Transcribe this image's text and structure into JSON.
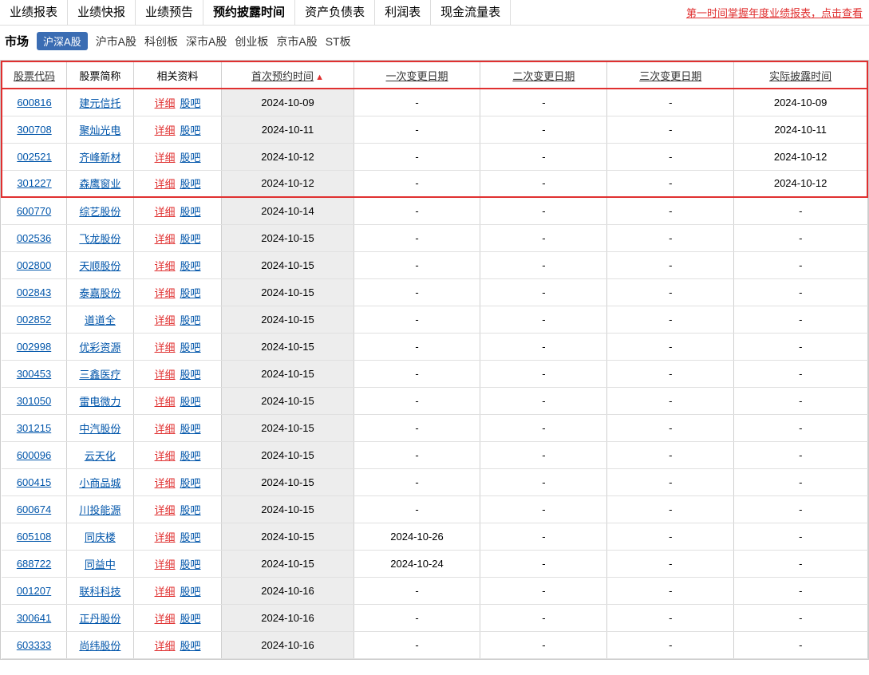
{
  "topTabs": [
    "业绩报表",
    "业绩快报",
    "业绩预告",
    "预约披露时间",
    "资产负债表",
    "利润表",
    "现金流量表"
  ],
  "topActiveIndex": 3,
  "promo": "第一时间掌握年度业绩报表，点击查看",
  "marketLabel": "市场",
  "marketActive": "沪深A股",
  "markets": [
    "沪市A股",
    "科创板",
    "深市A股",
    "创业板",
    "京市A股",
    "ST板"
  ],
  "headers": [
    "股票代码",
    "股票简称",
    "相关资料",
    "首次预约时间",
    "一次变更日期",
    "二次变更日期",
    "三次变更日期",
    "实际披露时间"
  ],
  "detailLabel": "详细",
  "gubaLabel": "股吧",
  "highlightCount": 4,
  "rows": [
    {
      "code": "600816",
      "name": "建元信托",
      "d1": "2024-10-09",
      "d2": "-",
      "d3": "-",
      "d4": "-",
      "actual": "2024-10-09"
    },
    {
      "code": "300708",
      "name": "聚灿光电",
      "d1": "2024-10-11",
      "d2": "-",
      "d3": "-",
      "d4": "-",
      "actual": "2024-10-11"
    },
    {
      "code": "002521",
      "name": "齐峰新材",
      "d1": "2024-10-12",
      "d2": "-",
      "d3": "-",
      "d4": "-",
      "actual": "2024-10-12"
    },
    {
      "code": "301227",
      "name": "森鹰窗业",
      "d1": "2024-10-12",
      "d2": "-",
      "d3": "-",
      "d4": "-",
      "actual": "2024-10-12"
    },
    {
      "code": "600770",
      "name": "综艺股份",
      "d1": "2024-10-14",
      "d2": "-",
      "d3": "-",
      "d4": "-",
      "actual": "-"
    },
    {
      "code": "002536",
      "name": "飞龙股份",
      "d1": "2024-10-15",
      "d2": "-",
      "d3": "-",
      "d4": "-",
      "actual": "-"
    },
    {
      "code": "002800",
      "name": "天顺股份",
      "d1": "2024-10-15",
      "d2": "-",
      "d3": "-",
      "d4": "-",
      "actual": "-"
    },
    {
      "code": "002843",
      "name": "泰嘉股份",
      "d1": "2024-10-15",
      "d2": "-",
      "d3": "-",
      "d4": "-",
      "actual": "-"
    },
    {
      "code": "002852",
      "name": "道道全",
      "d1": "2024-10-15",
      "d2": "-",
      "d3": "-",
      "d4": "-",
      "actual": "-"
    },
    {
      "code": "002998",
      "name": "优彩资源",
      "d1": "2024-10-15",
      "d2": "-",
      "d3": "-",
      "d4": "-",
      "actual": "-"
    },
    {
      "code": "300453",
      "name": "三鑫医疗",
      "d1": "2024-10-15",
      "d2": "-",
      "d3": "-",
      "d4": "-",
      "actual": "-"
    },
    {
      "code": "301050",
      "name": "雷电微力",
      "d1": "2024-10-15",
      "d2": "-",
      "d3": "-",
      "d4": "-",
      "actual": "-"
    },
    {
      "code": "301215",
      "name": "中汽股份",
      "d1": "2024-10-15",
      "d2": "-",
      "d3": "-",
      "d4": "-",
      "actual": "-"
    },
    {
      "code": "600096",
      "name": "云天化",
      "d1": "2024-10-15",
      "d2": "-",
      "d3": "-",
      "d4": "-",
      "actual": "-"
    },
    {
      "code": "600415",
      "name": "小商品城",
      "d1": "2024-10-15",
      "d2": "-",
      "d3": "-",
      "d4": "-",
      "actual": "-"
    },
    {
      "code": "600674",
      "name": "川投能源",
      "d1": "2024-10-15",
      "d2": "-",
      "d3": "-",
      "d4": "-",
      "actual": "-"
    },
    {
      "code": "605108",
      "name": "同庆楼",
      "d1": "2024-10-15",
      "d2": "2024-10-26",
      "d3": "-",
      "d4": "-",
      "actual": "-"
    },
    {
      "code": "688722",
      "name": "同益中",
      "d1": "2024-10-15",
      "d2": "2024-10-24",
      "d3": "-",
      "d4": "-",
      "actual": "-"
    },
    {
      "code": "001207",
      "name": "联科科技",
      "d1": "2024-10-16",
      "d2": "-",
      "d3": "-",
      "d4": "-",
      "actual": "-"
    },
    {
      "code": "300641",
      "name": "正丹股份",
      "d1": "2024-10-16",
      "d2": "-",
      "d3": "-",
      "d4": "-",
      "actual": "-"
    },
    {
      "code": "603333",
      "name": "尚纬股份",
      "d1": "2024-10-16",
      "d2": "-",
      "d3": "-",
      "d4": "-",
      "actual": "-"
    }
  ],
  "colors": {
    "link": "#0055aa",
    "red": "#e03030",
    "pill": "#3b6db3",
    "greyCell": "#ededed",
    "border": "#d0d0d0"
  }
}
